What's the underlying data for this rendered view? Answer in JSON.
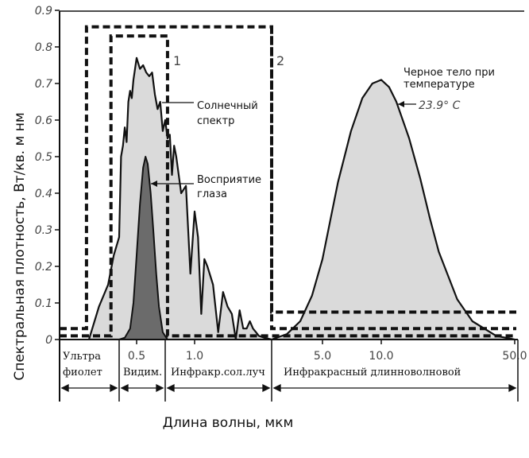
{
  "chart_data": {
    "type": "area",
    "xlabel": "Длина волны, мкм",
    "ylabel": "Спектральная плотность, Вт/кв. м нм",
    "ylim": [
      0,
      0.9
    ],
    "y_ticks": [
      "0",
      "0.1",
      "0.2",
      "0.3",
      "0.4",
      "0.5",
      "0.6",
      "0.7",
      "0.8",
      "0.9"
    ],
    "x_ticks": [
      "0.5",
      "1.0",
      "5.0",
      "10.0",
      "50.0"
    ],
    "regions": [
      {
        "lines": [
          "Ультра",
          "фиолет"
        ]
      },
      {
        "lines": [
          "Видим."
        ]
      },
      {
        "lines": [
          "Инфракр.сол.луч"
        ]
      },
      {
        "lines": [
          "Инфракрасный длинноволновой"
        ]
      }
    ],
    "annotations": {
      "solar": [
        "Солнечный",
        "спектр"
      ],
      "eye": [
        "Восприятие",
        "глаза"
      ],
      "blackbody": [
        "Черное тело при",
        "температуре"
      ],
      "temperature": "23.9° C",
      "box1": "1",
      "box2": "2"
    },
    "series": [
      {
        "name": "Солнечный спектр",
        "x": [
          0.3,
          0.33,
          0.36,
          0.38,
          0.4,
          0.41,
          0.42,
          0.43,
          0.44,
          0.45,
          0.46,
          0.47,
          0.48,
          0.49,
          0.5,
          0.52,
          0.54,
          0.56,
          0.58,
          0.6,
          0.62,
          0.64,
          0.66,
          0.68,
          0.7,
          0.72,
          0.74,
          0.76,
          0.78,
          0.8,
          0.85,
          0.9,
          0.95,
          1.0,
          1.05,
          1.1,
          1.15,
          1.2,
          1.3,
          1.4,
          1.5,
          1.6,
          1.7,
          1.8,
          1.9,
          2.0,
          2.1,
          2.2,
          2.3,
          2.4,
          2.5,
          2.7,
          3.0
        ],
        "y": [
          0.0,
          0.09,
          0.15,
          0.23,
          0.28,
          0.5,
          0.53,
          0.58,
          0.54,
          0.65,
          0.68,
          0.66,
          0.71,
          0.74,
          0.77,
          0.74,
          0.75,
          0.73,
          0.72,
          0.73,
          0.67,
          0.63,
          0.65,
          0.57,
          0.6,
          0.55,
          0.56,
          0.45,
          0.53,
          0.5,
          0.4,
          0.42,
          0.18,
          0.35,
          0.28,
          0.07,
          0.22,
          0.2,
          0.15,
          0.02,
          0.13,
          0.09,
          0.07,
          0.0,
          0.08,
          0.03,
          0.03,
          0.05,
          0.03,
          0.02,
          0.01,
          0.005,
          0.0
        ]
      },
      {
        "name": "Восприятие глаза",
        "x": [
          0.4,
          0.43,
          0.46,
          0.48,
          0.5,
          0.52,
          0.54,
          0.555,
          0.57,
          0.59,
          0.61,
          0.63,
          0.65,
          0.68,
          0.72
        ],
        "y": [
          0.0,
          0.005,
          0.03,
          0.1,
          0.23,
          0.37,
          0.47,
          0.5,
          0.48,
          0.4,
          0.29,
          0.18,
          0.09,
          0.02,
          0.0
        ]
      },
      {
        "name": "Черное тело при температуре 23.9° C",
        "x": [
          3.0,
          3.5,
          4.0,
          4.5,
          5.0,
          5.5,
          6.0,
          7.0,
          8.0,
          9.0,
          10.0,
          11.0,
          12.0,
          14.0,
          16.0,
          18.0,
          20.0,
          25.0,
          30.0,
          40.0,
          50.0
        ],
        "y": [
          0.0,
          0.015,
          0.05,
          0.12,
          0.22,
          0.33,
          0.43,
          0.57,
          0.66,
          0.7,
          0.71,
          0.69,
          0.65,
          0.55,
          0.44,
          0.33,
          0.24,
          0.11,
          0.05,
          0.01,
          0.0
        ]
      }
    ],
    "boxes": [
      {
        "name": "1",
        "x": [
          0.37,
          0.72
        ],
        "y": [
          0.01,
          0.83
        ]
      },
      {
        "name": "2",
        "x": [
          0.29,
          3.0
        ],
        "y": [
          0.03,
          0.855
        ]
      }
    ]
  }
}
